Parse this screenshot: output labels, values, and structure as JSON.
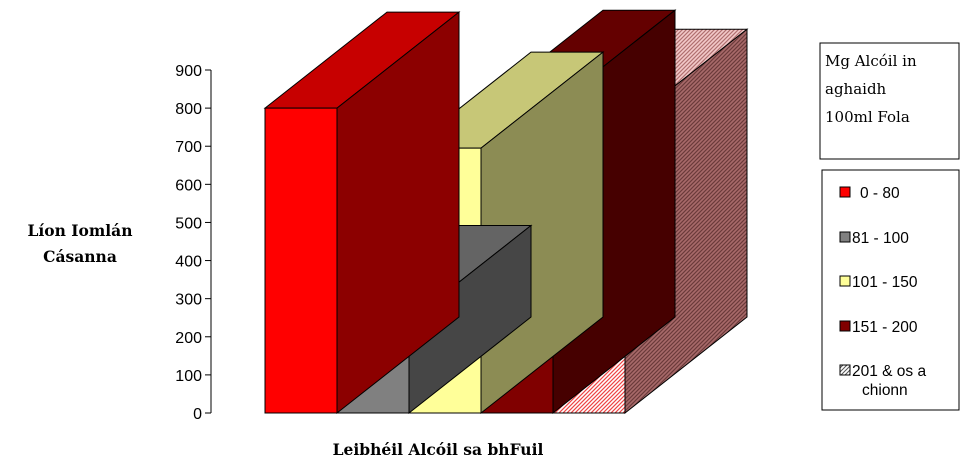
{
  "chart_data": {
    "type": "bar",
    "style": "3d",
    "xlabel": "Leibhéil Alcóil sa bhFuil",
    "ylabel_lines": [
      "Líon Iomlán",
      "Cásanna"
    ],
    "ylim": [
      0,
      900
    ],
    "yticks": [
      0,
      100,
      200,
      300,
      400,
      500,
      600,
      700,
      800,
      900
    ],
    "legend_title_lines": [
      "Mg Alcóil in",
      "aghaidh",
      "100ml Fola"
    ],
    "legend_position": "right",
    "series": [
      {
        "name_lines": [
          "0 - 80"
        ],
        "value": 800,
        "color": "#ff0000",
        "pattern": "solid"
      },
      {
        "name_lines": [
          "81 - 100"
        ],
        "value": 240,
        "color": "#808080",
        "pattern": "solid"
      },
      {
        "name_lines": [
          "101 - 150"
        ],
        "value": 695,
        "color": "#ffff99",
        "pattern": "solid"
      },
      {
        "name_lines": [
          "151 - 200"
        ],
        "value": 805,
        "color": "#800000",
        "pattern": "solid"
      },
      {
        "name_lines": [
          "201 & os a",
          "chionn"
        ],
        "value": 755,
        "color": "#ff9999",
        "pattern": "hatch"
      }
    ]
  }
}
